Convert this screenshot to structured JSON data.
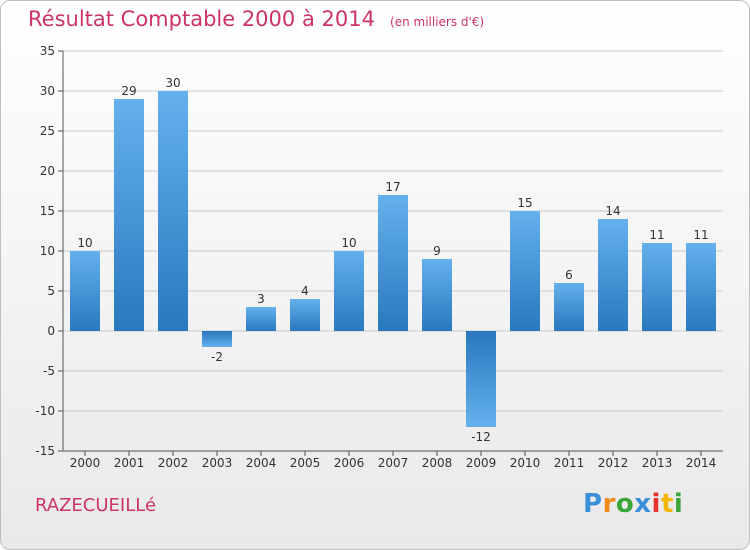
{
  "title": "Résultat Comptable 2000 à 2014",
  "unit": "(en milliers d'€)",
  "commune": "RAZECUEILLé",
  "logo": {
    "letters": [
      "P",
      "r",
      "o",
      "x",
      "i",
      "t",
      "i"
    ],
    "colors": [
      "#3b8fd9",
      "#f08a1c",
      "#3aa63a",
      "#3b8fd9",
      "#e6322e",
      "#f2b705",
      "#3aa63a"
    ]
  },
  "colors": {
    "title": "#cc3366",
    "bar_top": "#65b1ee",
    "bar_bottom": "#2978be",
    "grid": "#c8c8c8"
  },
  "chart_data": {
    "type": "bar",
    "categories": [
      "2000",
      "2001",
      "2002",
      "2003",
      "2004",
      "2005",
      "2006",
      "2007",
      "2008",
      "2009",
      "2010",
      "2011",
      "2012",
      "2013",
      "2014"
    ],
    "values": [
      10,
      29,
      30,
      -2,
      3,
      4,
      10,
      17,
      9,
      -12,
      15,
      6,
      14,
      11,
      11
    ],
    "title": "Résultat Comptable 2000 à 2014",
    "ylim": [
      -15,
      35
    ],
    "yticks": [
      -15,
      -10,
      -5,
      0,
      5,
      10,
      15,
      20,
      25,
      30,
      35
    ],
    "grid": true
  }
}
